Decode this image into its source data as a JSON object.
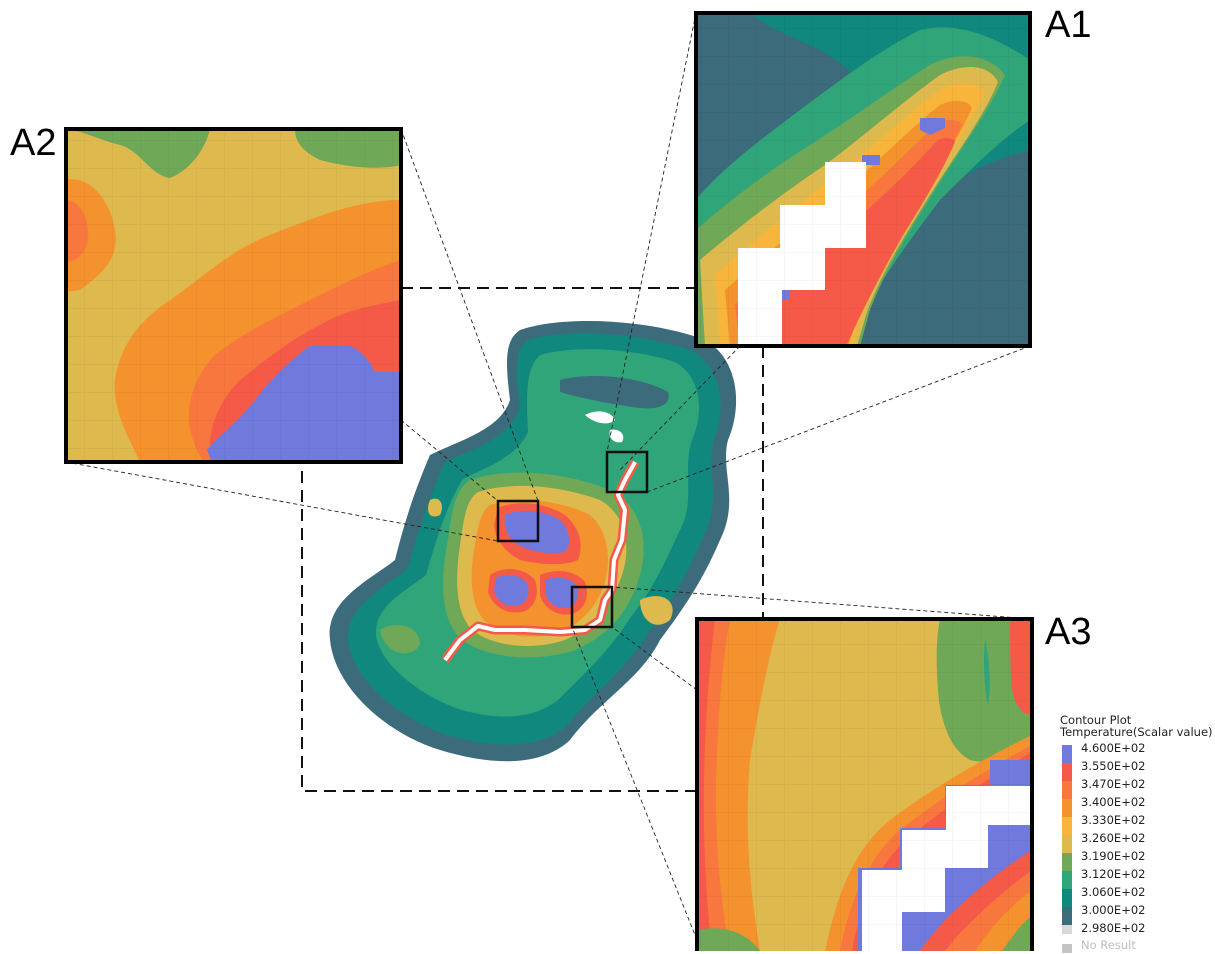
{
  "labels": {
    "a1": "A1",
    "a2": "A2",
    "a3": "A3"
  },
  "legend": {
    "title": "Contour Plot",
    "subtitle": "Temperature(Scalar value)",
    "entries": [
      {
        "value": "4.600E+02",
        "color": "#7079dc"
      },
      {
        "value": "3.550E+02",
        "color": "#f55a48"
      },
      {
        "value": "3.470E+02",
        "color": "#f7773e"
      },
      {
        "value": "3.400E+02",
        "color": "#f4922d"
      },
      {
        "value": "3.330E+02",
        "color": "#f7b53c"
      },
      {
        "value": "3.260E+02",
        "color": "#ddb94e"
      },
      {
        "value": "3.190E+02",
        "color": "#6fa857"
      },
      {
        "value": "3.120E+02",
        "color": "#31a57a"
      },
      {
        "value": "3.060E+02",
        "color": "#11887d"
      },
      {
        "value": "3.000E+02",
        "color": "#3c6b7b"
      },
      {
        "value": "2.980E+02",
        "color": "#d9d9d9"
      }
    ],
    "no_result": "No Result",
    "no_result_color": "#c4c4c4"
  },
  "palette": {
    "deep_teal": "#3c6b7b",
    "teal": "#11887d",
    "green_teal": "#31a57a",
    "green": "#6fa857",
    "khaki": "#ddb94e",
    "yellow_orange": "#f7b53c",
    "orange": "#f4922d",
    "dark_orange": "#f7773e",
    "red": "#f55a48",
    "blue": "#7079dc",
    "white": "#ffffff"
  }
}
